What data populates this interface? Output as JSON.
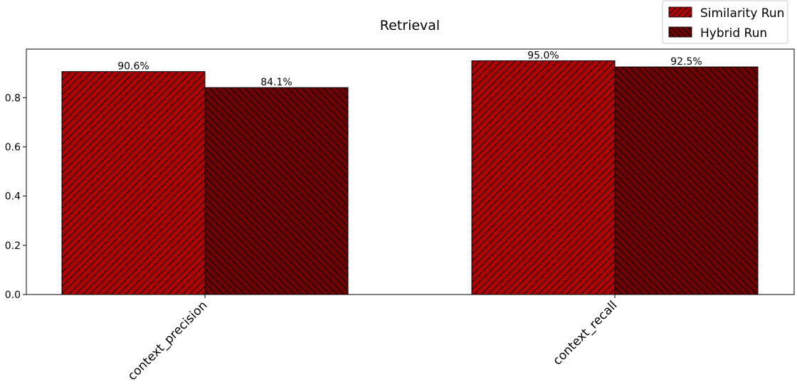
{
  "chart_data": {
    "type": "bar",
    "title": "Retrieval",
    "xlabel": "",
    "ylabel": "",
    "categories": [
      "context_precision",
      "context_recall"
    ],
    "series": [
      {
        "name": "Similarity Run",
        "values": [
          0.906,
          0.95
        ],
        "labels": [
          "90.6%",
          "95.0%"
        ],
        "color": "#b00000",
        "hatch": "forward-diagonal"
      },
      {
        "name": "Hybrid Run",
        "values": [
          0.841,
          0.925
        ],
        "labels": [
          "84.1%",
          "92.5%"
        ],
        "color": "#6e0000",
        "hatch": "backward-diagonal"
      }
    ],
    "ylim": [
      0,
      0.9975
    ],
    "yticks": [
      0.0,
      0.2,
      0.4,
      0.6,
      0.8
    ],
    "ytick_labels": [
      "0.0",
      "0.2",
      "0.4",
      "0.6",
      "0.8"
    ],
    "grid": false,
    "legend_position": "top-right"
  }
}
